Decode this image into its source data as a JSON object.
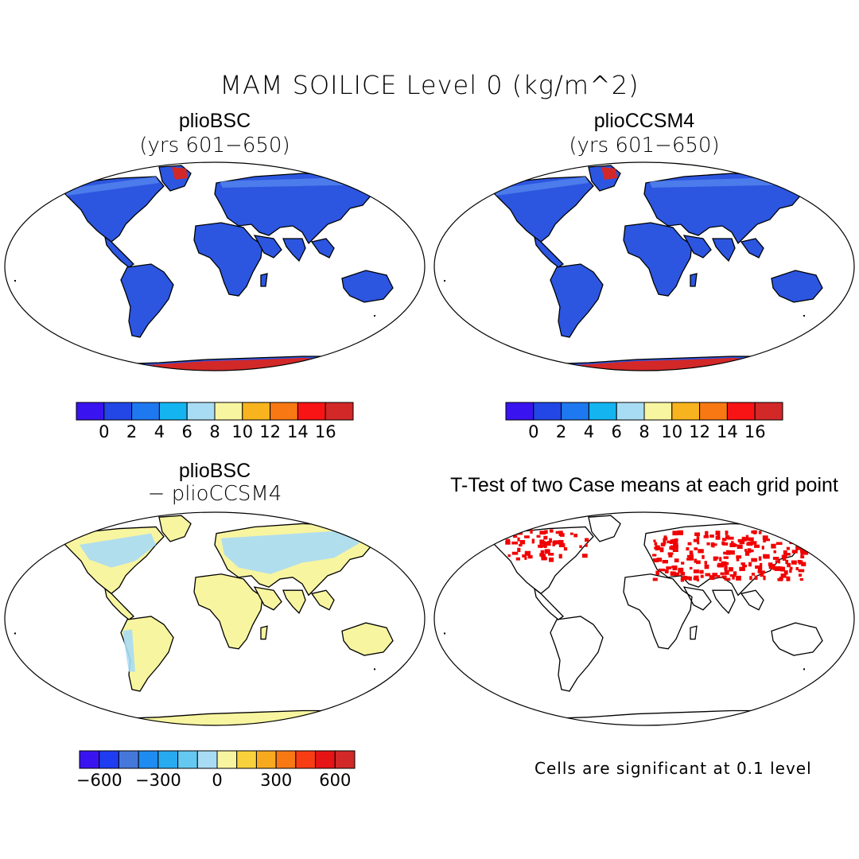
{
  "figure": {
    "title": "MAM SOILICE Level 0 (kg/m^2)"
  },
  "panels": [
    {
      "id": "top-left",
      "title": "plioBSC",
      "subtitle": "(yrs 601−650)",
      "fill": "blue-land-red-ice"
    },
    {
      "id": "top-right",
      "title": "plioCCSM4",
      "subtitle": "(yrs 601−650)",
      "fill": "blue-land-red-ice"
    },
    {
      "id": "bottom-left",
      "title": "plioBSC",
      "subtitle": "− plioCCSM4",
      "fill": "difference"
    },
    {
      "id": "bottom-right",
      "title": "T-Test of two Case means at each grid point",
      "subtitle": "",
      "fill": "significance"
    }
  ],
  "colorbars": {
    "absolute": {
      "colors": [
        "#3a14f0",
        "#2346e6",
        "#1e78f0",
        "#14b4f0",
        "#a8dcf5",
        "#f8f5a0",
        "#f8b41e",
        "#f87814",
        "#f81414",
        "#d22828"
      ],
      "tick_labels": [
        "0",
        "2",
        "4",
        "6",
        "8",
        "10",
        "12",
        "14",
        "16"
      ]
    },
    "difference": {
      "colors": [
        "#3a14f0",
        "#1e3cf0",
        "#4678dc",
        "#1e8cf0",
        "#28aaf0",
        "#64c8f0",
        "#a8dcf5",
        "#f8f5a0",
        "#f8d23c",
        "#f8aa1e",
        "#f87814",
        "#f83c14",
        "#e61414",
        "#d22828"
      ],
      "tick_labels": [
        "−600",
        "−300",
        "0",
        "300",
        "600"
      ]
    }
  },
  "significance_note": "Cells are significant at 0.1 level",
  "colors": {
    "land_low": "#2c56e0",
    "land_light": "#5a8cf0",
    "ice_high": "#d22828",
    "diff_positive": "#f8f5a0",
    "diff_negative": "#a8dcf5",
    "significant": "#f00000"
  }
}
